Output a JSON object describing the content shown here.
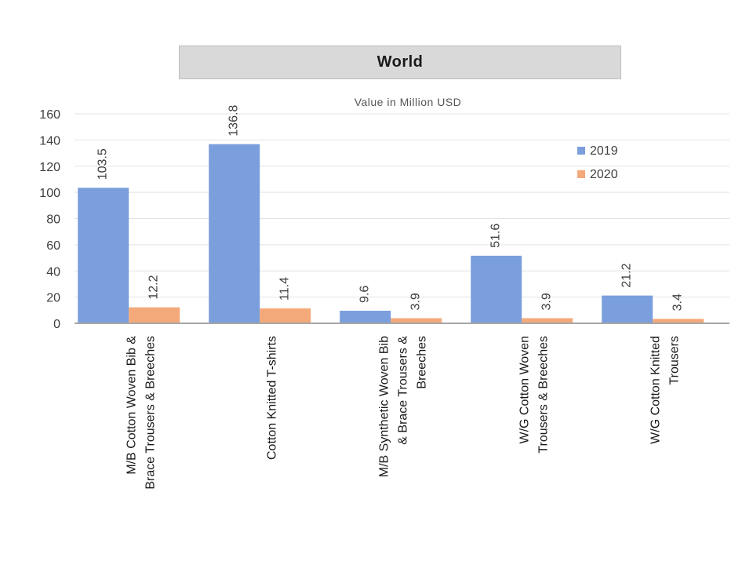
{
  "chart_data": {
    "type": "bar",
    "title": "World",
    "subtitle": "Value in Million USD",
    "categories": [
      [
        "M/B Cotton Woven Bib &",
        "Brace Trousers & Breeches"
      ],
      [
        "Cotton Knitted  T-shirts"
      ],
      [
        "M/B Synthetic Woven Bib",
        "& Brace Trousers &",
        "Breeches"
      ],
      [
        "W/G Cotton Woven",
        "Trousers & Breeches"
      ],
      [
        "W/G Cotton Knitted",
        "Trousers"
      ]
    ],
    "series": [
      {
        "name": "2019",
        "color": "#7b9fdc",
        "values": [
          103.5,
          136.8,
          9.6,
          51.6,
          21.2
        ]
      },
      {
        "name": "2020",
        "color": "#f4a97a",
        "values": [
          12.2,
          11.4,
          3.9,
          3.9,
          3.4
        ]
      }
    ],
    "ylim": [
      0,
      160
    ],
    "yticks": [
      "0",
      "20",
      "40",
      "60",
      "80",
      "100",
      "120",
      "140",
      "160"
    ],
    "grid": true,
    "legend_position": "top-right"
  }
}
